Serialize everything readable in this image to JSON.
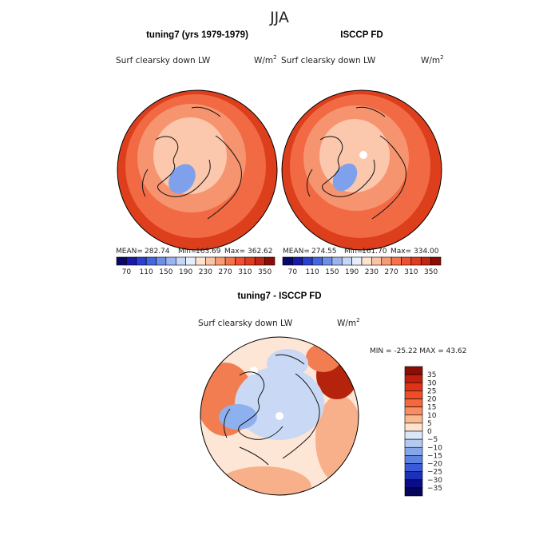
{
  "chart_data": {
    "type": "heatmap",
    "title": "JJA",
    "panels": [
      {
        "title": "tuning7 (yrs 1979-1979)",
        "variable": "Surf clearsky down LW",
        "units": "W/m",
        "units_exp": "2",
        "stats": {
          "mean_label": "MEAN=",
          "mean": "282.74",
          "min_label": "Min=",
          "min": "163.69",
          "max_label": "Max=",
          "max": "362.62"
        }
      },
      {
        "title": "ISCCP FD",
        "variable": "Surf clearsky down LW",
        "units": "W/m",
        "units_exp": "2",
        "stats": {
          "mean_label": "MEAN=",
          "mean": "274.55",
          "min_label": "Min=",
          "min": "161.70",
          "max_label": "Max=",
          "max": "334.00"
        }
      },
      {
        "title": "tuning7 - ISCCP FD",
        "variable": "Surf clearsky down LW",
        "units": "W/m",
        "units_exp": "2",
        "stats_text": "MIN = -25.22 MAX =  43.62"
      }
    ],
    "colorbar_abs": {
      "labels": [
        "70",
        "110",
        "150",
        "190",
        "230",
        "270",
        "310",
        "350"
      ],
      "colors": [
        "#08086b",
        "#1a1aa8",
        "#2b3fd0",
        "#4466e0",
        "#6f8ee9",
        "#9bb3f0",
        "#c6d6f6",
        "#e8eef9",
        "#fde3d0",
        "#fbc3a5",
        "#f89a72",
        "#f5734b",
        "#ef5030",
        "#e03a1f",
        "#c02612",
        "#8b0d05"
      ]
    },
    "colorbar_diff": {
      "labels": [
        "35",
        "30",
        "25",
        "20",
        "15",
        "10",
        "5",
        "0",
        "−5",
        "−10",
        "−15",
        "−20",
        "−25",
        "−30",
        "−35"
      ],
      "colors": [
        "#8b0d05",
        "#c11e0c",
        "#df3318",
        "#ef4d27",
        "#f5683d",
        "#f88d62",
        "#fbb990",
        "#fde3d0",
        "#dbe6f8",
        "#b3caf2",
        "#87a6ea",
        "#5e82e2",
        "#3a5ad8",
        "#1d30b8",
        "#0a0c8a",
        "#05055c"
      ]
    },
    "map_colors": {
      "low_blue": "#7fa0ea",
      "cool": "#fbc7ad",
      "mid": "#f79470",
      "warm": "#f16a43",
      "hot": "#dd3f1d",
      "diff_neutral": "#fde6d6",
      "diff_neg": "#c9d9f5",
      "diff_negmed": "#8fb0ee",
      "diff_pos": "#f8b08b",
      "diff_posmed": "#f27d50",
      "diff_hot": "#b5230d"
    }
  }
}
